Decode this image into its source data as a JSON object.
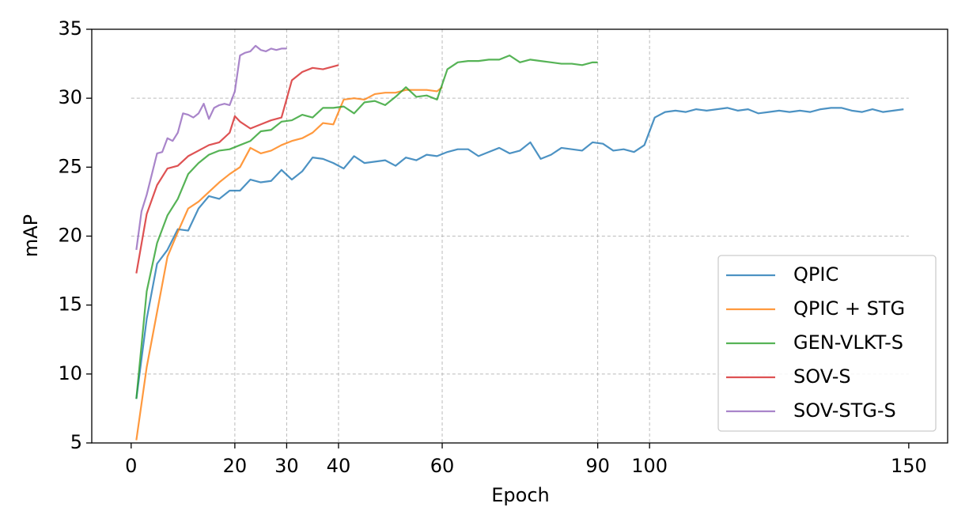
{
  "chart_data": {
    "type": "line",
    "xlabel": "Epoch",
    "ylabel": "mAP",
    "xlim": [
      -7.6,
      157.5
    ],
    "ylim": [
      5,
      35
    ],
    "xticks": [
      0,
      20,
      30,
      40,
      60,
      90,
      100,
      150
    ],
    "yticks": [
      5,
      10,
      15,
      20,
      25,
      30,
      35
    ],
    "xgrid": [
      20,
      30,
      40,
      60,
      90,
      100
    ],
    "ygrid": [
      10,
      20,
      30
    ],
    "legend": "lower right",
    "series": [
      {
        "name": "QPIC",
        "color": "#1f77b4",
        "x": [
          1,
          3,
          5,
          7,
          9,
          11,
          13,
          15,
          17,
          19,
          21,
          23,
          25,
          27,
          29,
          31,
          33,
          35,
          37,
          39,
          41,
          43,
          45,
          47,
          49,
          51,
          53,
          55,
          57,
          59,
          61,
          63,
          65,
          67,
          69,
          71,
          73,
          75,
          77,
          79,
          81,
          83,
          85,
          87,
          89,
          91,
          93,
          95,
          97,
          99,
          101,
          103,
          105,
          107,
          109,
          111,
          113,
          115,
          117,
          119,
          121,
          123,
          125,
          127,
          129,
          131,
          133,
          135,
          137,
          139,
          141,
          143,
          145,
          147,
          149
        ],
        "values": [
          8.2,
          14,
          18,
          19,
          20.5,
          20.4,
          22,
          22.9,
          22.7,
          23.3,
          23.3,
          24.1,
          23.9,
          24,
          24.8,
          24.1,
          24.7,
          25.7,
          25.6,
          25.3,
          24.9,
          25.8,
          25.3,
          25.4,
          25.5,
          25.1,
          25.7,
          25.5,
          25.9,
          25.8,
          26.1,
          26.3,
          26.3,
          25.8,
          26.1,
          26.4,
          26.0,
          26.2,
          26.8,
          25.6,
          25.9,
          26.4,
          26.3,
          26.2,
          26.8,
          26.7,
          26.2,
          26.3,
          26.1,
          26.6,
          28.6,
          29.0,
          29.1,
          29.0,
          29.2,
          29.1,
          29.2,
          29.3,
          29.1,
          29.2,
          28.9,
          29.0,
          29.1,
          29.0,
          29.1,
          29.0,
          29.2,
          29.3,
          29.3,
          29.1,
          29.0,
          29.2,
          29.0,
          29.1,
          29.2
        ]
      },
      {
        "name": "QPIC + STG",
        "color": "#ff7f0e",
        "x": [
          1,
          3,
          5,
          7,
          9,
          11,
          13,
          15,
          17,
          19,
          21,
          23,
          25,
          27,
          29,
          31,
          33,
          35,
          37,
          39,
          41,
          43,
          45,
          47,
          49,
          51,
          53,
          55,
          57,
          59,
          60
        ],
        "values": [
          5.2,
          10.5,
          14.5,
          18.5,
          20.3,
          22,
          22.5,
          23.2,
          23.9,
          24.5,
          25,
          26.4,
          26,
          26.2,
          26.6,
          26.9,
          27.1,
          27.5,
          28.2,
          28.1,
          29.9,
          30.0,
          29.9,
          30.3,
          30.4,
          30.4,
          30.6,
          30.6,
          30.6,
          30.5,
          30.8
        ]
      },
      {
        "name": "GEN-VLKT-S",
        "color": "#2ca02c",
        "x": [
          1,
          3,
          5,
          7,
          9,
          11,
          13,
          15,
          17,
          19,
          21,
          23,
          25,
          27,
          29,
          31,
          33,
          35,
          37,
          39,
          41,
          43,
          45,
          47,
          49,
          51,
          53,
          55,
          57,
          59,
          61,
          63,
          65,
          67,
          69,
          71,
          73,
          75,
          77,
          79,
          81,
          83,
          85,
          87,
          89,
          90
        ],
        "values": [
          8.2,
          16,
          19.5,
          21.5,
          22.7,
          24.5,
          25.3,
          25.9,
          26.2,
          26.3,
          26.6,
          26.9,
          27.6,
          27.7,
          28.3,
          28.4,
          28.8,
          28.6,
          29.3,
          29.3,
          29.4,
          28.9,
          29.7,
          29.8,
          29.5,
          30.1,
          30.8,
          30.1,
          30.2,
          29.9,
          32.1,
          32.6,
          32.7,
          32.7,
          32.8,
          32.8,
          33.1,
          32.6,
          32.8,
          32.7,
          32.6,
          32.5,
          32.5,
          32.4,
          32.6,
          32.6
        ]
      },
      {
        "name": "SOV-S",
        "color": "#d62728",
        "x": [
          1,
          3,
          5,
          7,
          9,
          11,
          13,
          15,
          17,
          19,
          20,
          21,
          23,
          25,
          27,
          29,
          31,
          33,
          35,
          37,
          39,
          40
        ],
        "values": [
          17.3,
          21.6,
          23.7,
          24.9,
          25.1,
          25.8,
          26.2,
          26.6,
          26.8,
          27.5,
          28.7,
          28.3,
          27.8,
          28.1,
          28.4,
          28.6,
          31.3,
          31.9,
          32.2,
          32.1,
          32.3,
          32.4
        ]
      },
      {
        "name": "SOV-STG-S",
        "color": "#9467bd",
        "x": [
          1,
          2,
          3,
          4,
          5,
          6,
          7,
          8,
          9,
          10,
          11,
          12,
          13,
          14,
          15,
          16,
          17,
          18,
          19,
          20,
          21,
          22,
          23,
          24,
          25,
          26,
          27,
          28,
          29,
          30
        ],
        "values": [
          19,
          21.8,
          23,
          24.5,
          26,
          26.1,
          27.1,
          26.9,
          27.5,
          28.9,
          28.8,
          28.6,
          28.9,
          29.6,
          28.5,
          29.3,
          29.5,
          29.6,
          29.5,
          30.5,
          33.1,
          33.3,
          33.4,
          33.8,
          33.5,
          33.4,
          33.6,
          33.5,
          33.6,
          33.6
        ]
      }
    ]
  }
}
